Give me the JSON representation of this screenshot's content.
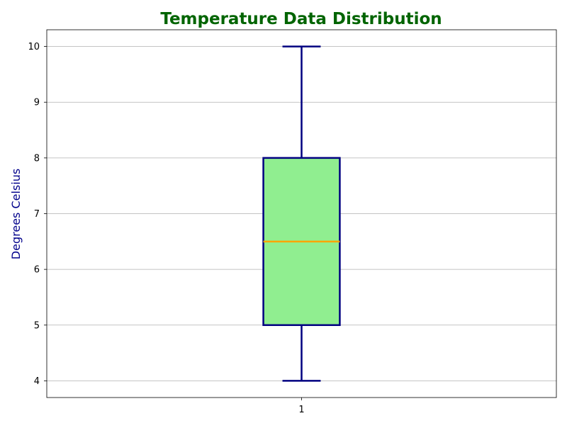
{
  "chart_data": {
    "type": "box",
    "title": "Temperature Data Distribution",
    "xlabel": "",
    "ylabel": "Degrees Celsius",
    "categories": [
      "1"
    ],
    "boxes": [
      {
        "category": "1",
        "whisker_low": 4,
        "q1": 5,
        "median": 6.5,
        "q3": 8,
        "whisker_high": 10
      }
    ],
    "ylim": [
      3.7,
      10.3
    ],
    "yticks": [
      4,
      5,
      6,
      7,
      8,
      9,
      10
    ],
    "grid": "horizontal"
  },
  "colors": {
    "title": "#006400",
    "ylabel": "#00008b",
    "box_fill": "#90ee90",
    "box_edge": "#000080",
    "median": "#ffa500",
    "whisker": "#000080",
    "grid": "#b0b0b0",
    "axis": "#000000"
  }
}
